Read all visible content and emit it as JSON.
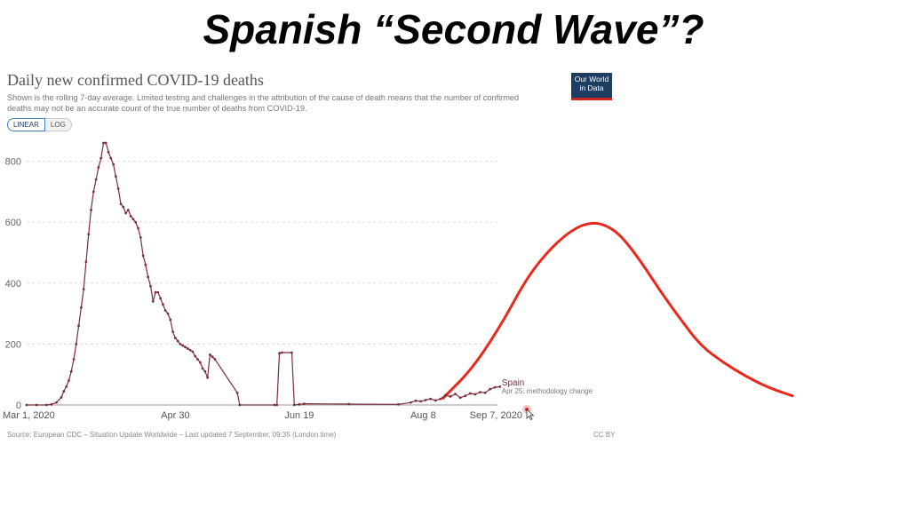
{
  "slide": {
    "title": "Spanish “Second Wave”?"
  },
  "header": {
    "title": "Daily new confirmed COVID-19 deaths",
    "subtitle": "Shown is the rolling 7-day average. Limited testing and challenges in the attribution of the cause of death means that the number of confirmed deaths may not be an accurate count of the true number of deaths from COVID-19."
  },
  "controls": {
    "linear_label": "LINEAR",
    "log_label": "LOG"
  },
  "logo": {
    "line1": "Our World",
    "line2": "in Data"
  },
  "footer": {
    "source": "Source: European CDC – Situation Update Worldwide – Last updated 7 September, 09:35 (London time)",
    "license": "CC BY"
  },
  "colors": {
    "series": "#7b2f3b",
    "projection": "#e8291c",
    "grid": "#dddddd",
    "logo_bg": "#1d3d63",
    "logo_accent": "#ce261e"
  },
  "chart_data": {
    "type": "line",
    "title": "Daily new confirmed COVID-19 deaths",
    "ylim": [
      0,
      900
    ],
    "yticks": [
      0,
      200,
      400,
      600,
      800
    ],
    "xticks": [
      {
        "day": 0,
        "label": "Mar 1, 2020"
      },
      {
        "day": 60,
        "label": "Apr 30"
      },
      {
        "day": 110,
        "label": "Jun 19"
      },
      {
        "day": 160,
        "label": "Aug 8"
      },
      {
        "day": 190,
        "label": "Sep 7, 2020"
      }
    ],
    "grid": "horizontal",
    "series": [
      {
        "name": "Spain",
        "annotation": "Apr 25: methodology change",
        "points": [
          [
            0,
            0
          ],
          [
            4,
            0
          ],
          [
            8,
            0
          ],
          [
            10,
            2
          ],
          [
            12,
            8
          ],
          [
            14,
            25
          ],
          [
            15,
            45
          ],
          [
            16,
            60
          ],
          [
            17,
            80
          ],
          [
            18,
            110
          ],
          [
            19,
            150
          ],
          [
            20,
            200
          ],
          [
            21,
            260
          ],
          [
            22,
            320
          ],
          [
            23,
            380
          ],
          [
            24,
            470
          ],
          [
            25,
            560
          ],
          [
            26,
            640
          ],
          [
            27,
            700
          ],
          [
            28,
            740
          ],
          [
            29,
            780
          ],
          [
            30,
            810
          ],
          [
            31,
            860
          ],
          [
            32,
            860
          ],
          [
            33,
            830
          ],
          [
            34,
            810
          ],
          [
            35,
            790
          ],
          [
            36,
            750
          ],
          [
            37,
            710
          ],
          [
            38,
            660
          ],
          [
            39,
            650
          ],
          [
            40,
            630
          ],
          [
            41,
            640
          ],
          [
            42,
            620
          ],
          [
            43,
            610
          ],
          [
            44,
            600
          ],
          [
            45,
            580
          ],
          [
            46,
            550
          ],
          [
            47,
            490
          ],
          [
            48,
            460
          ],
          [
            49,
            420
          ],
          [
            50,
            390
          ],
          [
            51,
            340
          ],
          [
            52,
            370
          ],
          [
            53,
            370
          ],
          [
            54,
            350
          ],
          [
            55,
            330
          ],
          [
            56,
            310
          ],
          [
            57,
            300
          ],
          [
            58,
            280
          ],
          [
            59,
            240
          ],
          [
            60,
            220
          ],
          [
            61,
            210
          ],
          [
            62,
            200
          ],
          [
            63,
            195
          ],
          [
            64,
            190
          ],
          [
            65,
            185
          ],
          [
            66,
            180
          ],
          [
            67,
            175
          ],
          [
            68,
            160
          ],
          [
            69,
            150
          ],
          [
            70,
            140
          ],
          [
            71,
            120
          ],
          [
            72,
            110
          ],
          [
            73,
            90
          ],
          [
            74,
            165
          ],
          [
            75,
            158
          ],
          [
            76,
            150
          ],
          [
            85,
            40
          ],
          [
            86,
            0
          ],
          [
            100,
            0
          ],
          [
            101,
            0
          ],
          [
            102,
            170
          ],
          [
            103,
            172
          ],
          [
            107,
            172
          ],
          [
            108,
            0
          ],
          [
            110,
            2
          ],
          [
            112,
            4
          ],
          [
            130,
            3
          ],
          [
            150,
            2
          ],
          [
            155,
            8
          ],
          [
            157,
            14
          ],
          [
            159,
            12
          ],
          [
            161,
            16
          ],
          [
            163,
            20
          ],
          [
            165,
            15
          ],
          [
            167,
            20
          ],
          [
            169,
            32
          ],
          [
            171,
            28
          ],
          [
            173,
            36
          ],
          [
            175,
            24
          ],
          [
            177,
            30
          ],
          [
            179,
            38
          ],
          [
            181,
            35
          ],
          [
            183,
            42
          ],
          [
            185,
            40
          ],
          [
            187,
            52
          ],
          [
            189,
            58
          ],
          [
            191,
            60
          ]
        ]
      }
    ],
    "projection": {
      "points": [
        [
          168,
          22
        ],
        [
          180,
          120
        ],
        [
          192,
          270
        ],
        [
          202,
          420
        ],
        [
          212,
          520
        ],
        [
          221,
          580
        ],
        [
          228,
          600
        ],
        [
          234,
          590
        ],
        [
          240,
          555
        ],
        [
          248,
          470
        ],
        [
          256,
          370
        ],
        [
          264,
          280
        ],
        [
          272,
          195
        ],
        [
          281,
          140
        ],
        [
          290,
          95
        ],
        [
          299,
          58
        ],
        [
          309,
          30
        ]
      ]
    }
  }
}
